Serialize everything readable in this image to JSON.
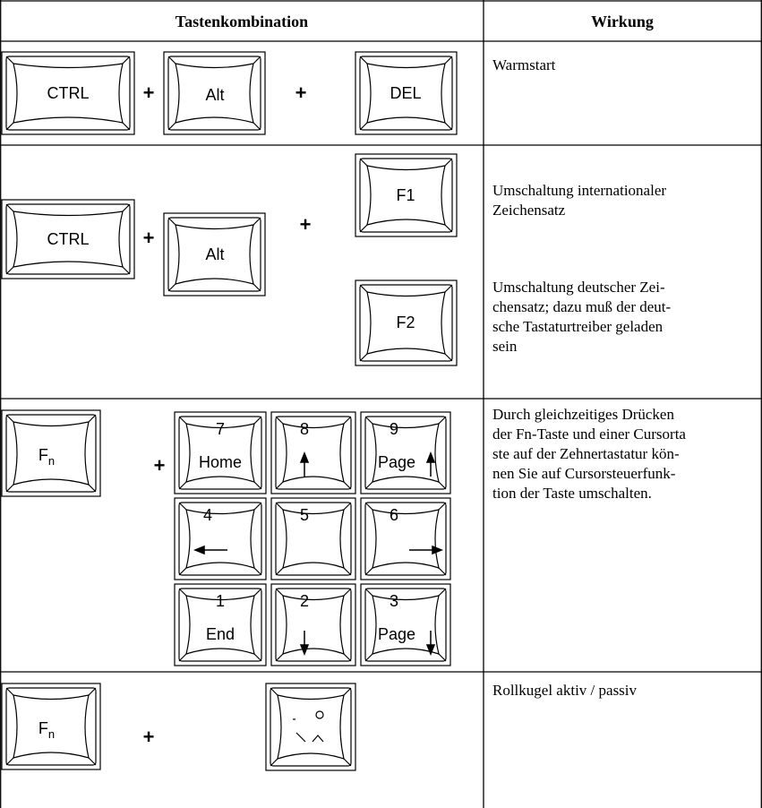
{
  "table": {
    "header": [
      "Tastenkombination",
      "Wirkung"
    ],
    "rows": [
      {
        "keys": [
          "CTRL",
          "+",
          "Alt",
          "+",
          "DEL"
        ],
        "effect": [
          "Warmstart"
        ]
      },
      {
        "keys": [
          "CTRL",
          "+",
          "Alt",
          "+",
          "F1",
          "F2"
        ],
        "effect": [
          "Umschaltung internationaler",
          "Zeichensatz"
        ],
        "effect2": [
          "Umschaltung deutscher Zei-",
          "chensatz; dazu muß der deut-",
          "sche Tastaturtreiber geladen",
          "sein"
        ]
      },
      {
        "fn": {
          "main": "F",
          "sub": "n"
        },
        "plus": "+",
        "numpad": [
          {
            "top": "7",
            "bottom": "Home"
          },
          {
            "top": "8"
          },
          {
            "top": "9",
            "bottom": "Page"
          },
          {
            "top": "4"
          },
          {
            "top": "5"
          },
          {
            "top": "6"
          },
          {
            "top": "1",
            "bottom": "End"
          },
          {
            "top": "2"
          },
          {
            "top": "3",
            "bottom": "Page"
          }
        ],
        "effect": [
          "Durch gleichzeitiges Drücken",
          "der Fn-Taste und einer Cursorta",
          "ste auf der Zehnertastatur kön-",
          "nen Sie auf Cursorsteuerfunk-",
          "tion der Taste umschalten."
        ]
      },
      {
        "fn": {
          "main": "F",
          "sub": "n"
        },
        "plus": "+",
        "effect": [
          "Rollkugel aktiv / passiv"
        ]
      }
    ]
  }
}
